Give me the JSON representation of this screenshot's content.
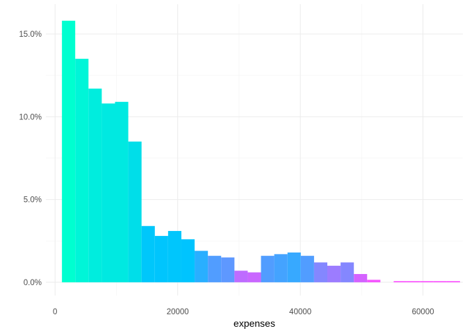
{
  "chart_data": {
    "type": "bar",
    "subtype": "histogram",
    "xlabel": "expenses",
    "ylabel": "",
    "xlim": [
      -1500,
      66500
    ],
    "ylim": [
      -0.8,
      16.8
    ],
    "x_ticks": [
      0,
      20000,
      40000,
      60000
    ],
    "x_tick_labels": [
      "0",
      "20000",
      "40000",
      "60000"
    ],
    "y_ticks": [
      0,
      5,
      10,
      15
    ],
    "y_tick_labels": [
      "0.0%",
      "5.0%",
      "10.0%",
      "15.0%"
    ],
    "y_unit": "percent",
    "grid": true,
    "legend": "none",
    "bin_width": 2164,
    "bins": [
      {
        "x0": 1121,
        "x1": 3285,
        "value": 15.8
      },
      {
        "x0": 3285,
        "x1": 5449,
        "value": 13.5
      },
      {
        "x0": 5449,
        "x1": 7613,
        "value": 11.7
      },
      {
        "x0": 7613,
        "x1": 9777,
        "value": 10.8
      },
      {
        "x0": 9777,
        "x1": 11941,
        "value": 10.9
      },
      {
        "x0": 11941,
        "x1": 14105,
        "value": 8.5
      },
      {
        "x0": 14105,
        "x1": 16269,
        "value": 3.4
      },
      {
        "x0": 16269,
        "x1": 18433,
        "value": 2.8
      },
      {
        "x0": 18433,
        "x1": 20597,
        "value": 3.1
      },
      {
        "x0": 20597,
        "x1": 22761,
        "value": 2.6
      },
      {
        "x0": 22761,
        "x1": 24925,
        "value": 1.9
      },
      {
        "x0": 24925,
        "x1": 27089,
        "value": 1.6
      },
      {
        "x0": 27089,
        "x1": 29253,
        "value": 1.5
      },
      {
        "x0": 29253,
        "x1": 31417,
        "value": 0.7
      },
      {
        "x0": 31417,
        "x1": 33581,
        "value": 0.6
      },
      {
        "x0": 33581,
        "x1": 35745,
        "value": 1.6
      },
      {
        "x0": 35745,
        "x1": 37909,
        "value": 1.7
      },
      {
        "x0": 37909,
        "x1": 40073,
        "value": 1.8
      },
      {
        "x0": 40073,
        "x1": 42237,
        "value": 1.6
      },
      {
        "x0": 42237,
        "x1": 44401,
        "value": 1.2
      },
      {
        "x0": 44401,
        "x1": 46565,
        "value": 1.0
      },
      {
        "x0": 46565,
        "x1": 48729,
        "value": 1.2
      },
      {
        "x0": 48729,
        "x1": 50893,
        "value": 0.5
      },
      {
        "x0": 50893,
        "x1": 53057,
        "value": 0.15
      },
      {
        "x0": 53057,
        "x1": 55221,
        "value": 0.0
      },
      {
        "x0": 55221,
        "x1": 57385,
        "value": 0.07
      },
      {
        "x0": 57385,
        "x1": 59549,
        "value": 0.07
      },
      {
        "x0": 59549,
        "x1": 61713,
        "value": 0.07
      },
      {
        "x0": 61713,
        "x1": 63877,
        "value": 0.07
      },
      {
        "x0": 63877,
        "x1": 66041,
        "value": 0.07
      }
    ],
    "fill_gradient": {
      "attribute": "density",
      "low_color": "#ff4fff",
      "mid_color": "#00c2ff",
      "high_color": "#00ffd0",
      "note_values": [
        0,
        2.2,
        15.8
      ]
    }
  }
}
